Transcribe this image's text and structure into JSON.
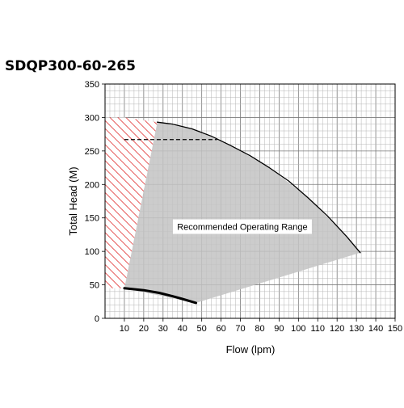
{
  "chart_data": {
    "type": "line",
    "title": "SDQP300-60-265",
    "xlabel": "Flow (lpm)",
    "ylabel": "Total Head (M)",
    "xlim": [
      0,
      150
    ],
    "ylim": [
      0,
      350
    ],
    "x_ticks": [
      10,
      20,
      30,
      40,
      50,
      60,
      70,
      80,
      90,
      100,
      110,
      120,
      130,
      140,
      150
    ],
    "y_ticks": [
      0,
      50,
      100,
      150,
      200,
      250,
      300,
      350
    ],
    "grid": true,
    "annotations": [
      {
        "text": "Recommended Operating Range",
        "x": 71,
        "y": 137
      }
    ],
    "series": [
      {
        "role": "head-curve",
        "x": [
          27,
          35,
          45,
          55,
          65,
          75,
          85,
          95,
          105,
          115,
          125,
          132
        ],
        "y": [
          293,
          290,
          283,
          272,
          258,
          243,
          225,
          205,
          180,
          153,
          122,
          98
        ],
        "color": "#000000"
      },
      {
        "role": "lower-curve",
        "x": [
          10,
          20,
          28,
          35,
          40,
          47
        ],
        "y": [
          45,
          42,
          38,
          33,
          29,
          23
        ],
        "color": "#000000"
      }
    ],
    "reference_lines": [
      {
        "role": "dashed-head-line",
        "y": 267,
        "x_range": [
          10,
          58
        ],
        "style": "dashed"
      }
    ],
    "regions": [
      {
        "role": "recommended-range",
        "fill": "#c3c3c3",
        "polygon_x": [
          27,
          45,
          65,
          85,
          105,
          125,
          132,
          47,
          10
        ],
        "polygon_y": [
          293,
          283,
          258,
          225,
          180,
          122,
          98,
          23,
          45
        ]
      },
      {
        "role": "not-recommended-hatched",
        "fill": "#e03030",
        "polygon_x": [
          10,
          0,
          0,
          10,
          27
        ],
        "polygon_y": [
          300,
          300,
          45,
          45,
          293
        ]
      }
    ]
  }
}
